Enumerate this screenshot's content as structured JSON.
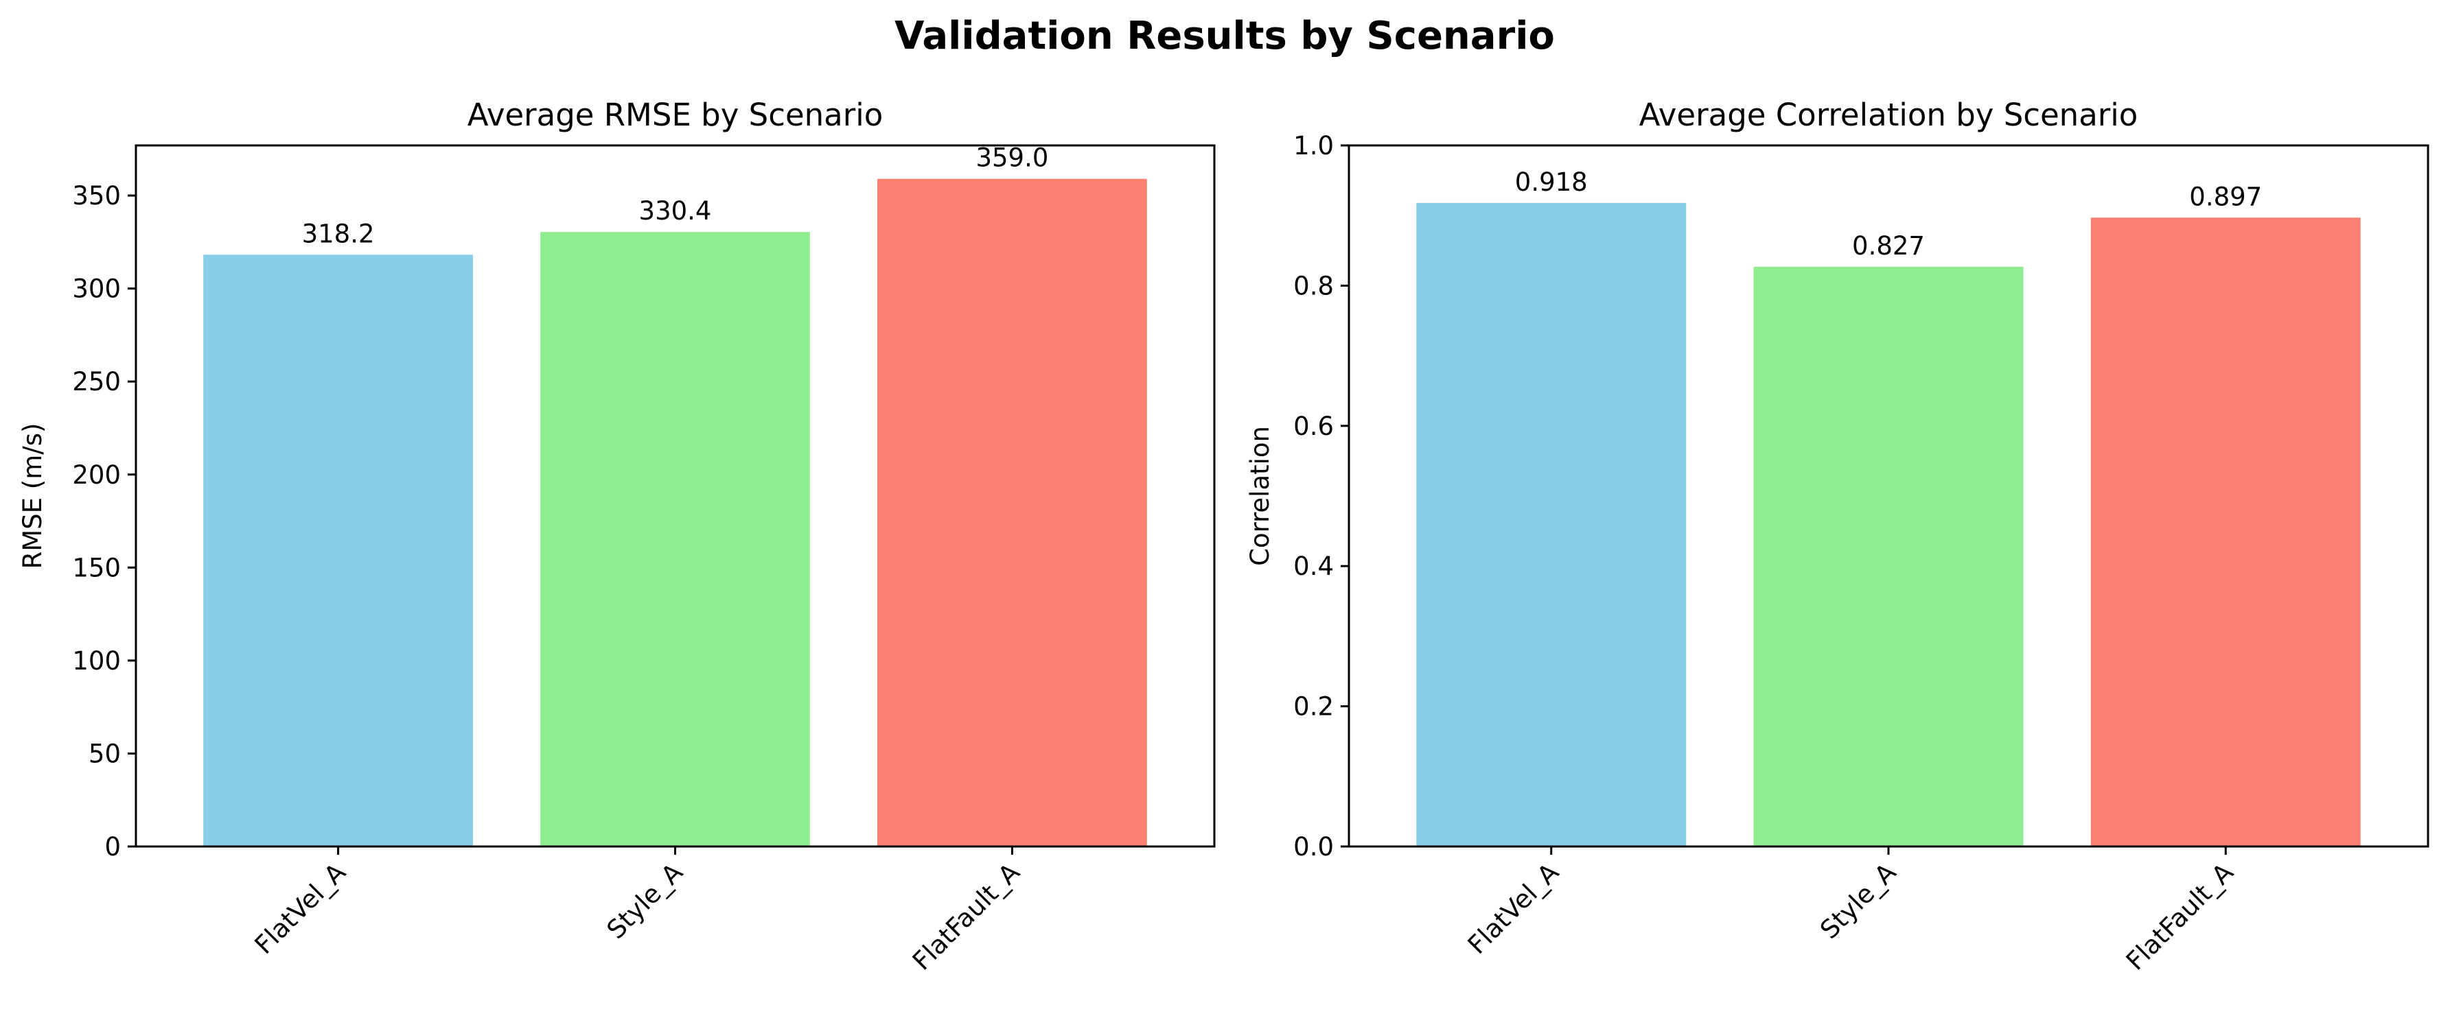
{
  "suptitle": "Validation Results by Scenario",
  "chart_data": [
    {
      "type": "bar",
      "title": "Average RMSE by Scenario",
      "xlabel": "",
      "ylabel": "RMSE (m/s)",
      "categories": [
        "FlatVel_A",
        "Style_A",
        "FlatFault_A"
      ],
      "values": [
        318.2,
        330.4,
        359.0
      ],
      "value_labels": [
        "318.2",
        "330.4",
        "359.0"
      ],
      "colors": [
        "#87ceeb",
        "#90ee90",
        "#fa8072"
      ],
      "ylim": [
        0,
        376.95
      ],
      "yticks": [
        0,
        50,
        100,
        150,
        200,
        250,
        300,
        350
      ],
      "ytick_labels": [
        "0",
        "50",
        "100",
        "150",
        "200",
        "250",
        "300",
        "350"
      ],
      "grid": false,
      "xtick_rotation": 45
    },
    {
      "type": "bar",
      "title": "Average Correlation by Scenario",
      "xlabel": "",
      "ylabel": "Correlation",
      "categories": [
        "FlatVel_A",
        "Style_A",
        "FlatFault_A"
      ],
      "values": [
        0.918,
        0.827,
        0.897
      ],
      "value_labels": [
        "0.918",
        "0.827",
        "0.897"
      ],
      "colors": [
        "#87ceeb",
        "#90ee90",
        "#fa8072"
      ],
      "ylim": [
        0,
        1.0
      ],
      "yticks": [
        0,
        0.2,
        0.4,
        0.6,
        0.8,
        1.0
      ],
      "ytick_labels": [
        "0.0",
        "0.2",
        "0.4",
        "0.6",
        "0.8",
        "1.0"
      ],
      "grid": false,
      "xtick_rotation": 45
    }
  ]
}
